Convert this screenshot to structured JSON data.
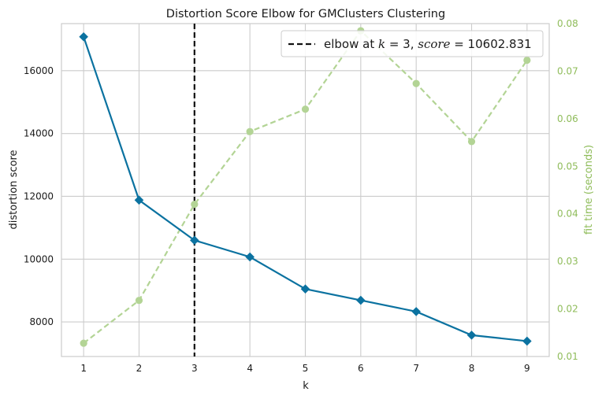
{
  "chart_data": {
    "type": "line",
    "title": "Distortion Score Elbow for GMClusters Clustering",
    "xlabel": "k",
    "ylabel": "distortion score",
    "y2label": "fit time (seconds)",
    "x": [
      1,
      2,
      3,
      4,
      5,
      6,
      7,
      8,
      9
    ],
    "xlim": [
      0.6,
      9.4
    ],
    "ylim": [
      6900,
      17500
    ],
    "y2lim": [
      0.01,
      0.08
    ],
    "yticks": [
      "8000",
      "10000",
      "12000",
      "14000",
      "16000"
    ],
    "y2ticks": [
      "0.01",
      "0.02",
      "0.03",
      "0.04",
      "0.05",
      "0.06",
      "0.07",
      "0.08"
    ],
    "series": [
      {
        "name": "distortion score",
        "axis": "left",
        "values": [
          17080,
          11880,
          10600,
          10070,
          9050,
          8690,
          8330,
          7580,
          7390
        ],
        "color": "#0b72a0",
        "marker": "diamond",
        "linestyle": "solid"
      },
      {
        "name": "fit time (seconds)",
        "axis": "right",
        "values": [
          0.0128,
          0.0218,
          0.042,
          0.0573,
          0.062,
          0.0785,
          0.0674,
          0.0552,
          0.0723
        ],
        "color": "#b3d495",
        "marker": "circle",
        "linestyle": "dashed"
      }
    ],
    "elbow": {
      "k": 3,
      "score": "10602.831",
      "legend_prefix": "elbow at ",
      "legend_k": "k",
      "legend_eq1": " = 3, ",
      "legend_score": "score",
      "legend_eq2": " = 10602.831",
      "color": "#111111",
      "linestyle": "dashed"
    },
    "legend_position": "top-right",
    "grid": true,
    "right_axis_color": "#8fbc5a"
  }
}
